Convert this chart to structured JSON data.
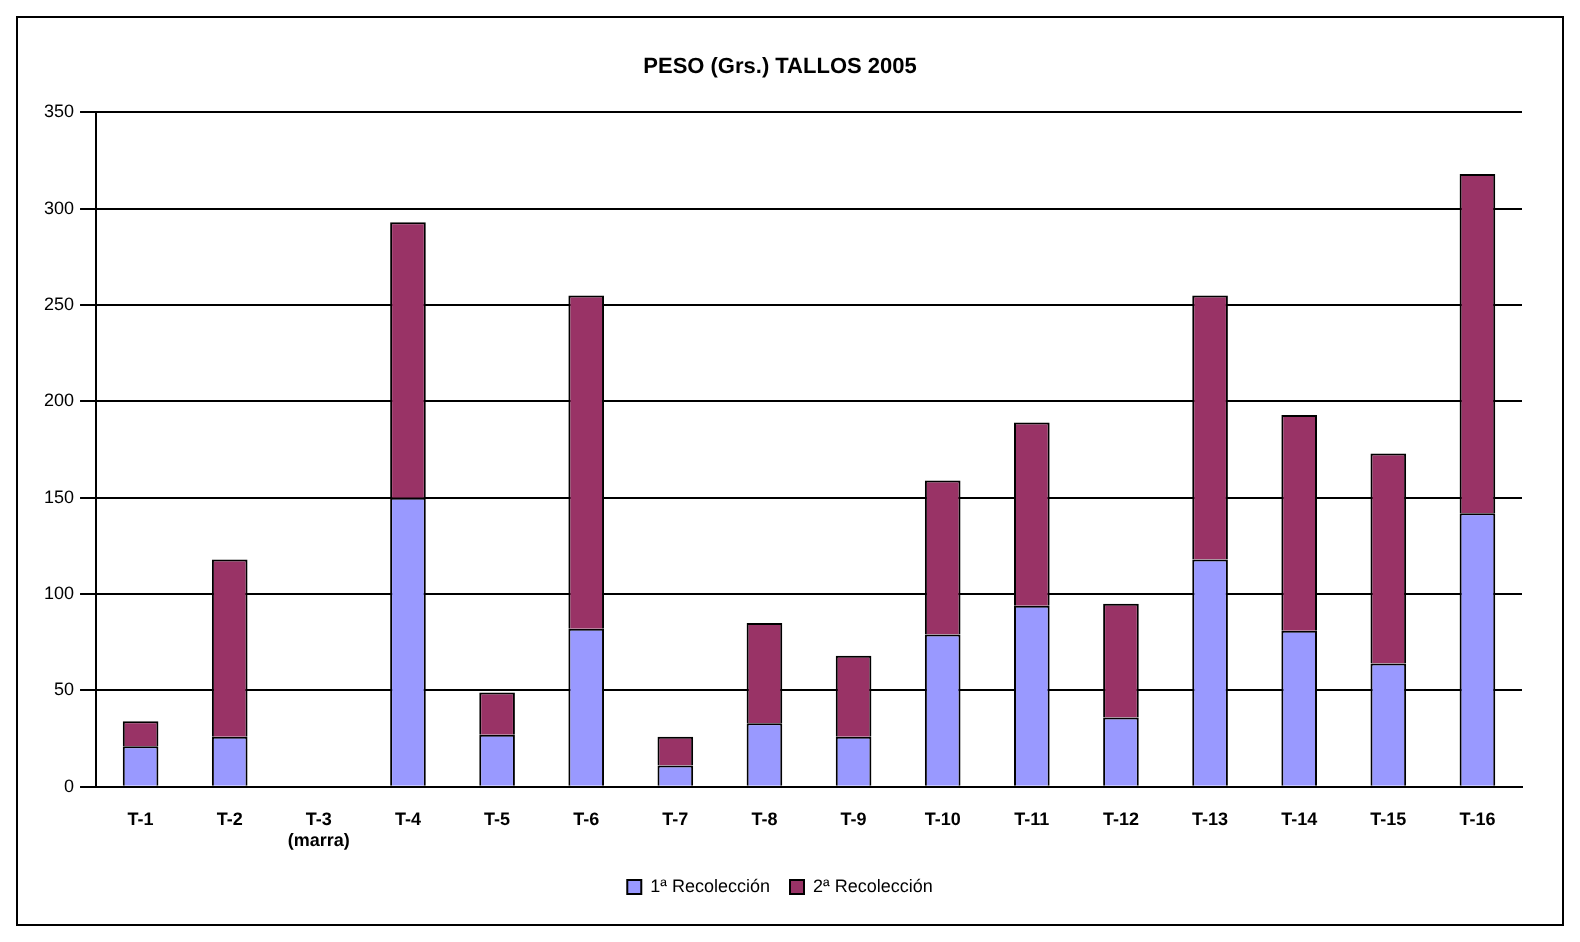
{
  "chart_data": {
    "type": "bar",
    "title": "PESO (Grs.) TALLOS 2005",
    "categories": [
      "T-1",
      "T-2",
      "T-3\n(marra)",
      "T-4",
      "T-5",
      "T-6",
      "T-7",
      "T-8",
      "T-9",
      "T-10",
      "T-11",
      "T-12",
      "T-13",
      "T-14",
      "T-15",
      "T-16"
    ],
    "stacked": true,
    "series": [
      {
        "name": "1ª Recolección",
        "color": "#9999ff",
        "values": [
          21,
          26,
          0,
          150,
          27,
          82,
          11,
          33,
          26,
          79,
          94,
          36,
          118,
          81,
          64,
          142
        ]
      },
      {
        "name": "2ª Recolección",
        "color": "#993366",
        "values": [
          13,
          92,
          0,
          143,
          22,
          173,
          15,
          52,
          42,
          80,
          95,
          59,
          137,
          112,
          109,
          176
        ]
      }
    ],
    "ylim": [
      0,
      350
    ],
    "yticks": [
      0,
      50,
      100,
      150,
      200,
      250,
      300,
      350
    ],
    "grid": "y",
    "legend": "bottom"
  }
}
